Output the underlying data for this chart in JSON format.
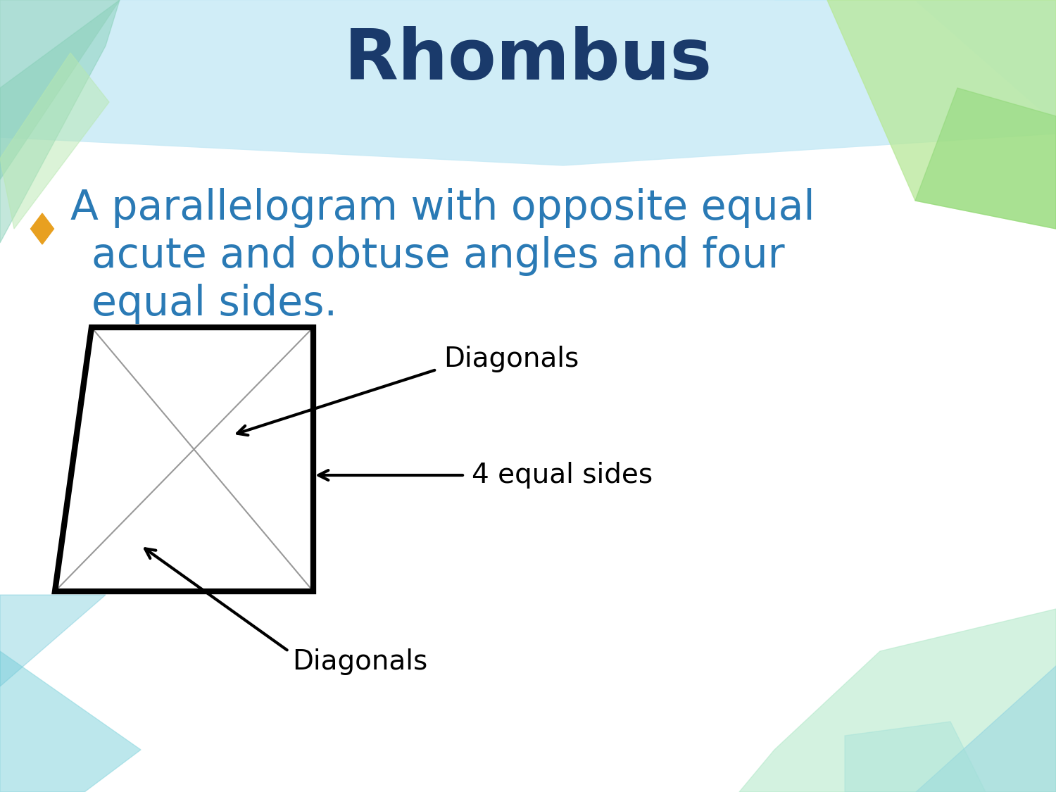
{
  "title": "Rhombus",
  "title_color": "#1a3a6b",
  "title_fontsize": 72,
  "bullet_text_line1": "A parallelogram with opposite equal",
  "bullet_text_line2": "acute and obtuse angles and four",
  "bullet_text_line3": "equal sides.",
  "bullet_color": "#2a7ab5",
  "bullet_fontsize": 42,
  "bullet_diamond_color": "#e8a020",
  "label_diagonals_top": "Diagonals",
  "label_diagonals_bottom": "Diagonals",
  "label_sides": "4 equal sides",
  "label_color": "#000000",
  "label_fontsize": 28,
  "bg_color": "#ffffff",
  "banner_color": "#d0eef8",
  "teal_color": "#7dd8d8",
  "green_color": "#a0d890",
  "green_light": "#c8eca0"
}
